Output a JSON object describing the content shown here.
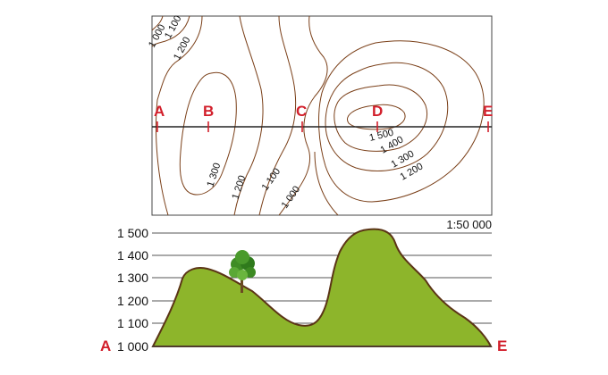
{
  "map": {
    "scale_label": "1:50 000",
    "contour_color": "#7a3f18",
    "section_line_color": "#222222",
    "contour_labels": {
      "c1000_top": "1 000",
      "c1100_top": "1 100",
      "c1200_top": "1 200",
      "c1300": "1 300",
      "c1200_bottom": "1 200",
      "c1100_bottom": "1 100",
      "c1000_bottom": "1 000",
      "c1500": "1 500",
      "c1400": "1 400",
      "c1300_right": "1 300",
      "c1200_right": "1 200"
    },
    "points": [
      {
        "label": "A"
      },
      {
        "label": "B"
      },
      {
        "label": "C"
      },
      {
        "label": "D"
      },
      {
        "label": "E"
      }
    ],
    "point_color": "#d21f2b"
  },
  "profile": {
    "y_ticks": [
      "1 500",
      "1 400",
      "1 300",
      "1 200",
      "1 100",
      "1 000"
    ],
    "start_label": "A",
    "end_label": "E",
    "fill_color": "#8db52b",
    "outline_color": "#5b3416"
  }
}
